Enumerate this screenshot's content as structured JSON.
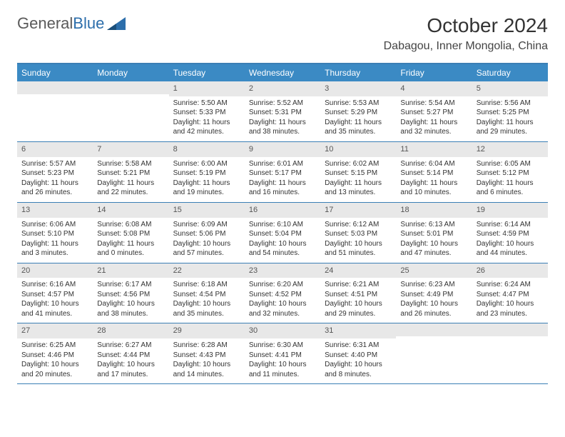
{
  "brand": {
    "part1": "General",
    "part2": "Blue"
  },
  "title": "October 2024",
  "location": "Dabagou, Inner Mongolia, China",
  "colors": {
    "header_bar": "#3b8ac4",
    "week_border": "#3b7fb5",
    "daynum_bg": "#e8e8e8",
    "text": "#333333",
    "logo_gray": "#5a5a5a",
    "logo_blue": "#2c6eab",
    "background": "#ffffff"
  },
  "weekdays": [
    "Sunday",
    "Monday",
    "Tuesday",
    "Wednesday",
    "Thursday",
    "Friday",
    "Saturday"
  ],
  "weeks": [
    [
      null,
      null,
      {
        "n": "1",
        "sr": "Sunrise: 5:50 AM",
        "ss": "Sunset: 5:33 PM",
        "dl": "Daylight: 11 hours and 42 minutes."
      },
      {
        "n": "2",
        "sr": "Sunrise: 5:52 AM",
        "ss": "Sunset: 5:31 PM",
        "dl": "Daylight: 11 hours and 38 minutes."
      },
      {
        "n": "3",
        "sr": "Sunrise: 5:53 AM",
        "ss": "Sunset: 5:29 PM",
        "dl": "Daylight: 11 hours and 35 minutes."
      },
      {
        "n": "4",
        "sr": "Sunrise: 5:54 AM",
        "ss": "Sunset: 5:27 PM",
        "dl": "Daylight: 11 hours and 32 minutes."
      },
      {
        "n": "5",
        "sr": "Sunrise: 5:56 AM",
        "ss": "Sunset: 5:25 PM",
        "dl": "Daylight: 11 hours and 29 minutes."
      }
    ],
    [
      {
        "n": "6",
        "sr": "Sunrise: 5:57 AM",
        "ss": "Sunset: 5:23 PM",
        "dl": "Daylight: 11 hours and 26 minutes."
      },
      {
        "n": "7",
        "sr": "Sunrise: 5:58 AM",
        "ss": "Sunset: 5:21 PM",
        "dl": "Daylight: 11 hours and 22 minutes."
      },
      {
        "n": "8",
        "sr": "Sunrise: 6:00 AM",
        "ss": "Sunset: 5:19 PM",
        "dl": "Daylight: 11 hours and 19 minutes."
      },
      {
        "n": "9",
        "sr": "Sunrise: 6:01 AM",
        "ss": "Sunset: 5:17 PM",
        "dl": "Daylight: 11 hours and 16 minutes."
      },
      {
        "n": "10",
        "sr": "Sunrise: 6:02 AM",
        "ss": "Sunset: 5:15 PM",
        "dl": "Daylight: 11 hours and 13 minutes."
      },
      {
        "n": "11",
        "sr": "Sunrise: 6:04 AM",
        "ss": "Sunset: 5:14 PM",
        "dl": "Daylight: 11 hours and 10 minutes."
      },
      {
        "n": "12",
        "sr": "Sunrise: 6:05 AM",
        "ss": "Sunset: 5:12 PM",
        "dl": "Daylight: 11 hours and 6 minutes."
      }
    ],
    [
      {
        "n": "13",
        "sr": "Sunrise: 6:06 AM",
        "ss": "Sunset: 5:10 PM",
        "dl": "Daylight: 11 hours and 3 minutes."
      },
      {
        "n": "14",
        "sr": "Sunrise: 6:08 AM",
        "ss": "Sunset: 5:08 PM",
        "dl": "Daylight: 11 hours and 0 minutes."
      },
      {
        "n": "15",
        "sr": "Sunrise: 6:09 AM",
        "ss": "Sunset: 5:06 PM",
        "dl": "Daylight: 10 hours and 57 minutes."
      },
      {
        "n": "16",
        "sr": "Sunrise: 6:10 AM",
        "ss": "Sunset: 5:04 PM",
        "dl": "Daylight: 10 hours and 54 minutes."
      },
      {
        "n": "17",
        "sr": "Sunrise: 6:12 AM",
        "ss": "Sunset: 5:03 PM",
        "dl": "Daylight: 10 hours and 51 minutes."
      },
      {
        "n": "18",
        "sr": "Sunrise: 6:13 AM",
        "ss": "Sunset: 5:01 PM",
        "dl": "Daylight: 10 hours and 47 minutes."
      },
      {
        "n": "19",
        "sr": "Sunrise: 6:14 AM",
        "ss": "Sunset: 4:59 PM",
        "dl": "Daylight: 10 hours and 44 minutes."
      }
    ],
    [
      {
        "n": "20",
        "sr": "Sunrise: 6:16 AM",
        "ss": "Sunset: 4:57 PM",
        "dl": "Daylight: 10 hours and 41 minutes."
      },
      {
        "n": "21",
        "sr": "Sunrise: 6:17 AM",
        "ss": "Sunset: 4:56 PM",
        "dl": "Daylight: 10 hours and 38 minutes."
      },
      {
        "n": "22",
        "sr": "Sunrise: 6:18 AM",
        "ss": "Sunset: 4:54 PM",
        "dl": "Daylight: 10 hours and 35 minutes."
      },
      {
        "n": "23",
        "sr": "Sunrise: 6:20 AM",
        "ss": "Sunset: 4:52 PM",
        "dl": "Daylight: 10 hours and 32 minutes."
      },
      {
        "n": "24",
        "sr": "Sunrise: 6:21 AM",
        "ss": "Sunset: 4:51 PM",
        "dl": "Daylight: 10 hours and 29 minutes."
      },
      {
        "n": "25",
        "sr": "Sunrise: 6:23 AM",
        "ss": "Sunset: 4:49 PM",
        "dl": "Daylight: 10 hours and 26 minutes."
      },
      {
        "n": "26",
        "sr": "Sunrise: 6:24 AM",
        "ss": "Sunset: 4:47 PM",
        "dl": "Daylight: 10 hours and 23 minutes."
      }
    ],
    [
      {
        "n": "27",
        "sr": "Sunrise: 6:25 AM",
        "ss": "Sunset: 4:46 PM",
        "dl": "Daylight: 10 hours and 20 minutes."
      },
      {
        "n": "28",
        "sr": "Sunrise: 6:27 AM",
        "ss": "Sunset: 4:44 PM",
        "dl": "Daylight: 10 hours and 17 minutes."
      },
      {
        "n": "29",
        "sr": "Sunrise: 6:28 AM",
        "ss": "Sunset: 4:43 PM",
        "dl": "Daylight: 10 hours and 14 minutes."
      },
      {
        "n": "30",
        "sr": "Sunrise: 6:30 AM",
        "ss": "Sunset: 4:41 PM",
        "dl": "Daylight: 10 hours and 11 minutes."
      },
      {
        "n": "31",
        "sr": "Sunrise: 6:31 AM",
        "ss": "Sunset: 4:40 PM",
        "dl": "Daylight: 10 hours and 8 minutes."
      },
      null,
      null
    ]
  ]
}
